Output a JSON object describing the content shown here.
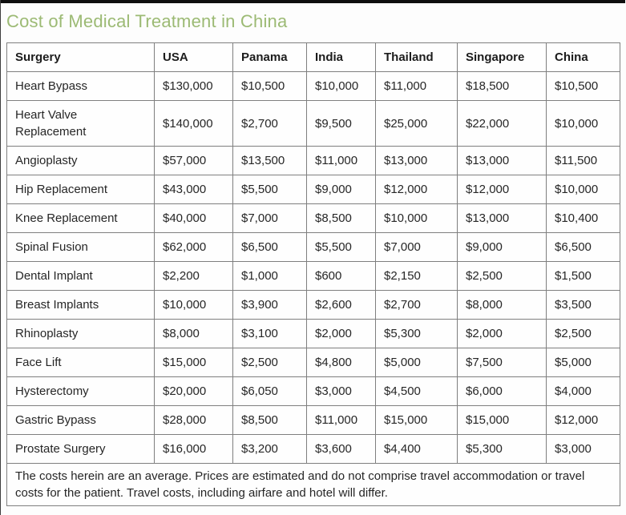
{
  "page": {
    "title": "Cost of Medical Treatment in China",
    "title_color": "#9cba74",
    "top_bar_color": "#0f0f0f",
    "border_color": "#7f7f7f",
    "text_color": "#262626"
  },
  "chart_data": {
    "type": "table",
    "title": "Cost of Medical Treatment in China",
    "columns": [
      "Surgery",
      "USA",
      "Panama",
      "India",
      "Thailand",
      "Singapore",
      "China"
    ],
    "rows": [
      {
        "surgery": "Heart Bypass",
        "values": [
          "$130,000",
          "$10,500",
          "$10,000",
          "$11,000",
          "$18,500",
          "$10,500"
        ]
      },
      {
        "surgery": "Heart Valve Replacement",
        "values": [
          "$140,000",
          "$2,700",
          "$9,500",
          "$25,000",
          "$22,000",
          "$10,000"
        ]
      },
      {
        "surgery": "Angioplasty",
        "values": [
          "$57,000",
          "$13,500",
          "$11,000",
          "$13,000",
          "$13,000",
          "$11,500"
        ]
      },
      {
        "surgery": "Hip Replacement",
        "values": [
          "$43,000",
          "$5,500",
          "$9,000",
          "$12,000",
          "$12,000",
          "$10,000"
        ]
      },
      {
        "surgery": "Knee Replacement",
        "values": [
          "$40,000",
          "$7,000",
          "$8,500",
          "$10,000",
          "$13,000",
          "$10,400"
        ]
      },
      {
        "surgery": "Spinal Fusion",
        "values": [
          "$62,000",
          "$6,500",
          "$5,500",
          "$7,000",
          "$9,000",
          "$6,500"
        ]
      },
      {
        "surgery": "Dental Implant",
        "values": [
          "$2,200",
          "$1,000",
          "$600",
          "$2,150",
          "$2,500",
          "$1,500"
        ]
      },
      {
        "surgery": "Breast Implants",
        "values": [
          "$10,000",
          "$3,900",
          "$2,600",
          "$2,700",
          "$8,000",
          "$3,500"
        ]
      },
      {
        "surgery": "Rhinoplasty",
        "values": [
          "$8,000",
          "$3,100",
          "$2,000",
          "$5,300",
          "$2,000",
          "$2,500"
        ]
      },
      {
        "surgery": "Face Lift",
        "values": [
          "$15,000",
          "$2,500",
          "$4,800",
          "$5,000",
          "$7,500",
          "$5,000"
        ]
      },
      {
        "surgery": "Hysterectomy",
        "values": [
          "$20,000",
          "$6,050",
          "$3,000",
          "$4,500",
          "$6,000",
          "$4,000"
        ]
      },
      {
        "surgery": "Gastric Bypass",
        "values": [
          "$28,000",
          "$8,500",
          "$11,000",
          "$15,000",
          "$15,000",
          "$12,000"
        ]
      },
      {
        "surgery": "Prostate Surgery",
        "values": [
          "$16,000",
          "$3,200",
          "$3,600",
          "$4,400",
          "$5,300",
          "$3,000"
        ]
      }
    ],
    "footnote": "The costs herein are an average. Prices are estimated and do not comprise travel accommodation or travel costs for the patient. Travel costs, including airfare and hotel will differ."
  }
}
